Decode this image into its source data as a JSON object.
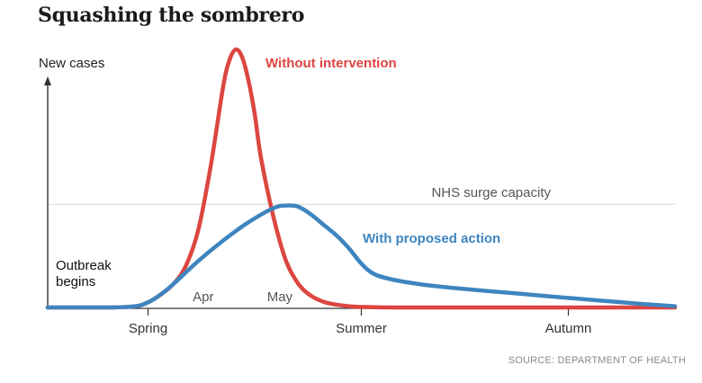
{
  "title": "Squashing the sombrero",
  "source": "SOURCE: DEPARTMENT OF HEALTH",
  "chart_data": {
    "type": "line",
    "title": "Squashing the sombrero",
    "xlabel": "",
    "ylabel": "New cases",
    "xlim": [
      0,
      100
    ],
    "ylim": [
      0,
      100
    ],
    "grid": false,
    "x_ticks": [
      {
        "label": "Spring",
        "x": 16
      },
      {
        "label": "Summer",
        "x": 50
      },
      {
        "label": "Autumn",
        "x": 83
      }
    ],
    "month_labels": [
      {
        "label": "Apr",
        "x": 24.8
      },
      {
        "label": "May",
        "x": 37
      }
    ],
    "reference_line": {
      "label": "NHS surge capacity",
      "y": 40
    },
    "annotation": [
      "Outbreak",
      "begins"
    ],
    "series": [
      {
        "name": "Without intervention",
        "color": "#dc4640",
        "x": [
          0,
          10,
          14,
          16,
          18,
          20,
          22,
          24,
          26,
          28,
          29,
          30,
          31,
          32,
          33,
          34,
          36,
          38,
          40,
          42,
          44,
          46,
          48,
          50,
          55,
          60,
          100
        ],
        "y": [
          0,
          0,
          0.5,
          2,
          5,
          9,
          16,
          30,
          55,
          86,
          96,
          100,
          97,
          88,
          75,
          58,
          35,
          18,
          9,
          4.5,
          2.2,
          1.1,
          0.5,
          0.2,
          0,
          0,
          0
        ]
      },
      {
        "name": "With proposed action",
        "color": "#3e85bf",
        "x": [
          0,
          10,
          14,
          16,
          18,
          20,
          24,
          28,
          32,
          36,
          38,
          40,
          42,
          44,
          46,
          48,
          50,
          52,
          55,
          60,
          65,
          70,
          75,
          80,
          85,
          90,
          95,
          100
        ],
        "y": [
          0,
          0,
          0.5,
          2,
          5,
          9,
          18,
          26,
          33,
          38.5,
          39.5,
          39,
          36,
          32,
          28,
          23,
          17,
          13,
          10.8,
          8.8,
          7.5,
          6.4,
          5.4,
          4.3,
          3.3,
          2.3,
          1.3,
          0.5
        ]
      }
    ]
  }
}
